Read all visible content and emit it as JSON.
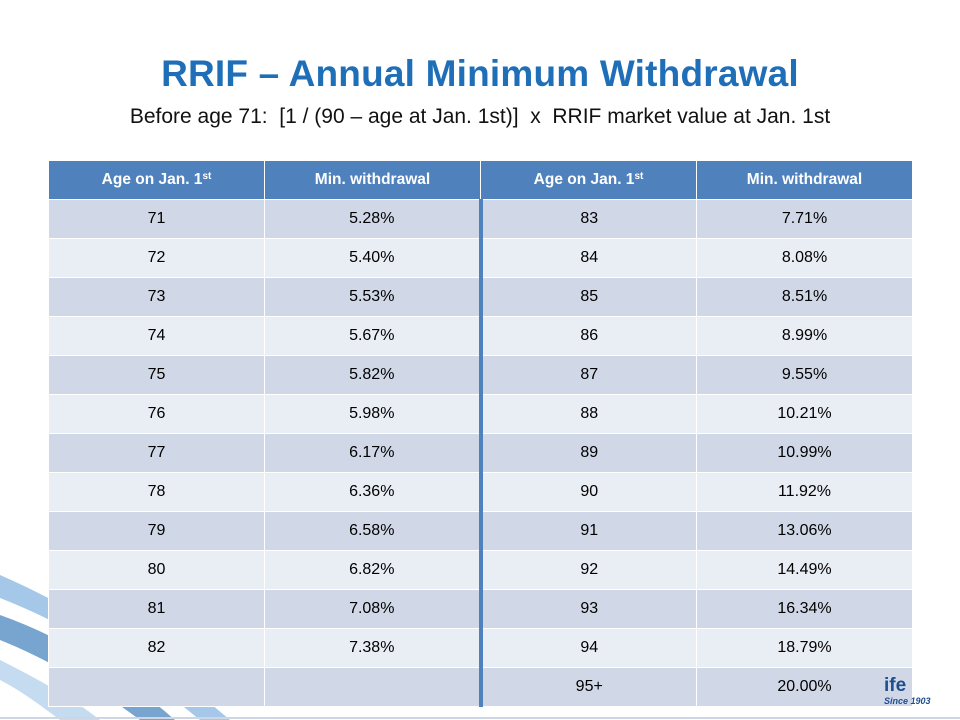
{
  "slide": {
    "title": "RRIF – Annual Minimum Withdrawal",
    "formula": "Before age 71:  [1 / (90 – age at Jan. 1st)]  x  RRIF market value at Jan. 1st",
    "title_color": "#1f6fb8",
    "header_color": "#4f81bd",
    "row_color_odd": "#d0d8e8",
    "row_color_even": "#e9edf4"
  },
  "table": {
    "headers": [
      {
        "label": "Age on Jan. 1",
        "sup": "st"
      },
      {
        "label": "Min. withdrawal",
        "sup": ""
      },
      {
        "label": "Age on Jan. 1",
        "sup": "st"
      },
      {
        "label": "Min. withdrawal",
        "sup": ""
      }
    ],
    "rows": [
      [
        "71",
        "5.28%",
        "83",
        "7.71%"
      ],
      [
        "72",
        "5.40%",
        "84",
        "8.08%"
      ],
      [
        "73",
        "5.53%",
        "85",
        "8.51%"
      ],
      [
        "74",
        "5.67%",
        "86",
        "8.99%"
      ],
      [
        "75",
        "5.82%",
        "87",
        "9.55%"
      ],
      [
        "76",
        "5.98%",
        "88",
        "10.21%"
      ],
      [
        "77",
        "6.17%",
        "89",
        "10.99%"
      ],
      [
        "78",
        "6.36%",
        "90",
        "11.92%"
      ],
      [
        "79",
        "6.58%",
        "91",
        "13.06%"
      ],
      [
        "80",
        "6.82%",
        "92",
        "14.49%"
      ],
      [
        "81",
        "7.08%",
        "93",
        "16.34%"
      ],
      [
        "82",
        "7.38%",
        "94",
        "18.79%"
      ],
      [
        "",
        "",
        "95+",
        "20.00%"
      ]
    ]
  },
  "logo": {
    "word": "ife",
    "since": "Since 1903"
  }
}
